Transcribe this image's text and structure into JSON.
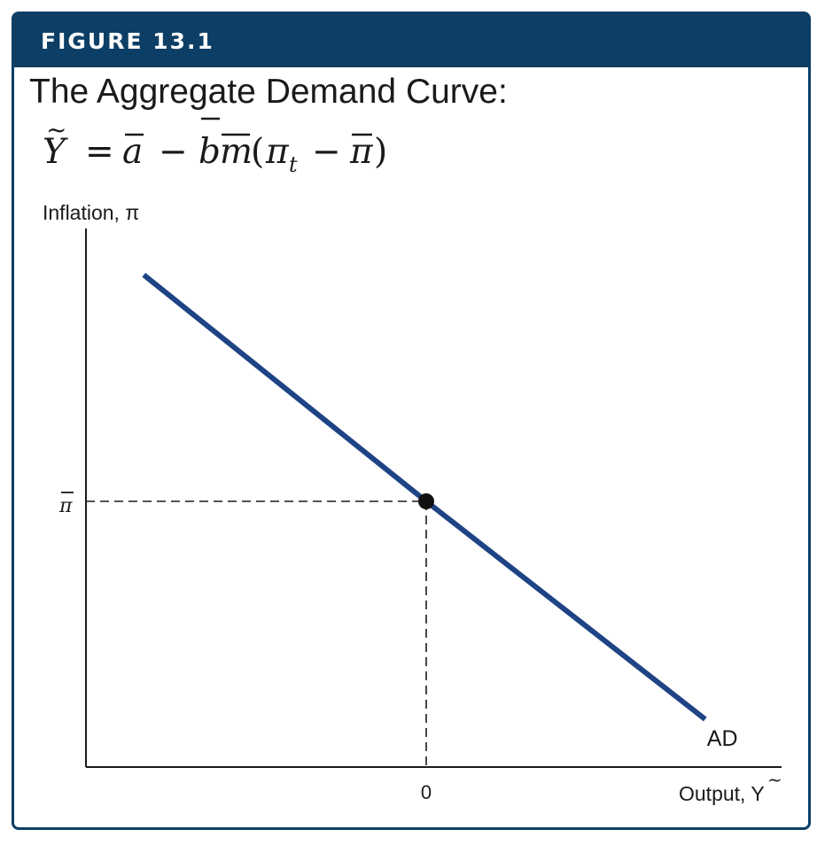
{
  "figure": {
    "label": "FIGURE 13.1",
    "title": "The Aggregate Demand Curve:"
  },
  "equation": {
    "lhs": "Y",
    "lhs_accent": "~",
    "equals": "=",
    "a_term": "a",
    "minus1": "−",
    "b_term": "b",
    "m_term": "m",
    "open_paren": "(",
    "pi_t": "π",
    "pi_t_subscript": "t",
    "minus2": "−",
    "pi_bar": "π",
    "close_paren": ")"
  },
  "colors": {
    "header_bg": "#0d3f66",
    "curve": "#1f4485",
    "axis": "#1a1a1a"
  },
  "chart_data": {
    "type": "line",
    "xlabel": "Output, Y",
    "xlabel_accent": "~",
    "ylabel": "Inflation, π",
    "x_tick_label": "0",
    "y_tick_label": "π",
    "series": [
      {
        "name": "AD",
        "x": [
          -0.83,
          0,
          0.84
        ],
        "y": [
          0.83,
          0,
          -0.82
        ]
      }
    ],
    "equilibrium_point": {
      "x": 0,
      "y": 0
    },
    "xlim": [
      -1.0,
      1.07
    ],
    "ylim": [
      -1.0,
      1.0
    ],
    "grid": false
  }
}
